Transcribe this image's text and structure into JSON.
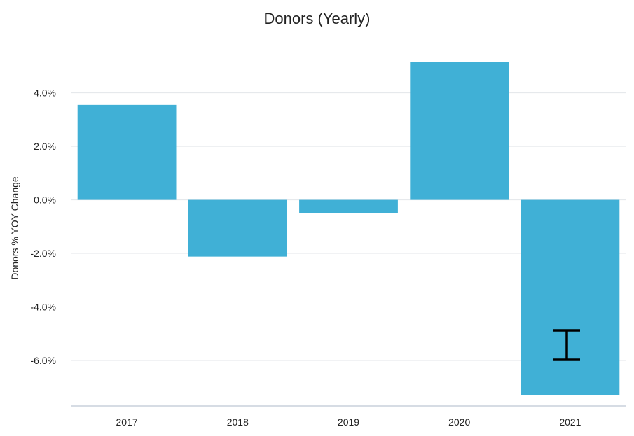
{
  "chart_data": {
    "type": "bar",
    "title": "Donors (Yearly)",
    "xlabel": "",
    "ylabel": "Donors % YOY Change",
    "categories": [
      "2017",
      "2018",
      "2019",
      "2020",
      "2021"
    ],
    "values": [
      3.55,
      -2.12,
      -0.5,
      5.15,
      -7.3
    ],
    "ylim": [
      -7.7,
      5.9
    ],
    "yticks": [
      4,
      2,
      0,
      -2,
      -4,
      -6
    ],
    "ytick_labels": [
      "4.0%",
      "2.0%",
      "0.0%",
      "-2.0%",
      "-4.0%",
      "-6.0%"
    ],
    "grid": true,
    "legend": "none",
    "bar_color": "#40b0d6"
  },
  "cursor": {
    "icon": "text-cursor-icon"
  }
}
